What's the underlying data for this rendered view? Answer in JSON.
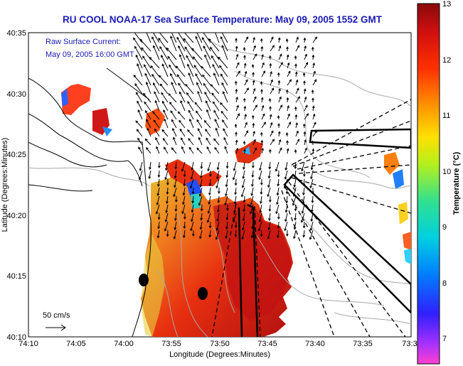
{
  "title": "RU COOL  NOAA-17  Sea Surface Temperature:  May 09, 2005 1552 GMT",
  "annotations": {
    "current_title": "Raw Surface Current:",
    "current_time": "May 09, 2005 16:00 GMT",
    "scale_label": "50 cm/s"
  },
  "axes": {
    "xlabel": "Longitude (Degrees:Minutes)",
    "ylabel": "Latitude (Degrees:Minutes)",
    "x_ticks": [
      "74:10",
      "74:05",
      "74:00",
      "73:55",
      "73:50",
      "73:45",
      "73:40",
      "73:35",
      "73:3"
    ],
    "y_ticks": [
      "40:35",
      "40:30",
      "40:25",
      "40:20",
      "40:15",
      "40:10"
    ]
  },
  "colorbar": {
    "label": "Temperature (°C)",
    "ticks": [
      "13",
      "12",
      "11",
      "10",
      "9",
      "8",
      "7"
    ],
    "min": 6.5,
    "max": 13
  },
  "colors": {
    "title": "#1a1ab4",
    "coast": "#000000",
    "bathymetry": "#a8a8a8"
  }
}
